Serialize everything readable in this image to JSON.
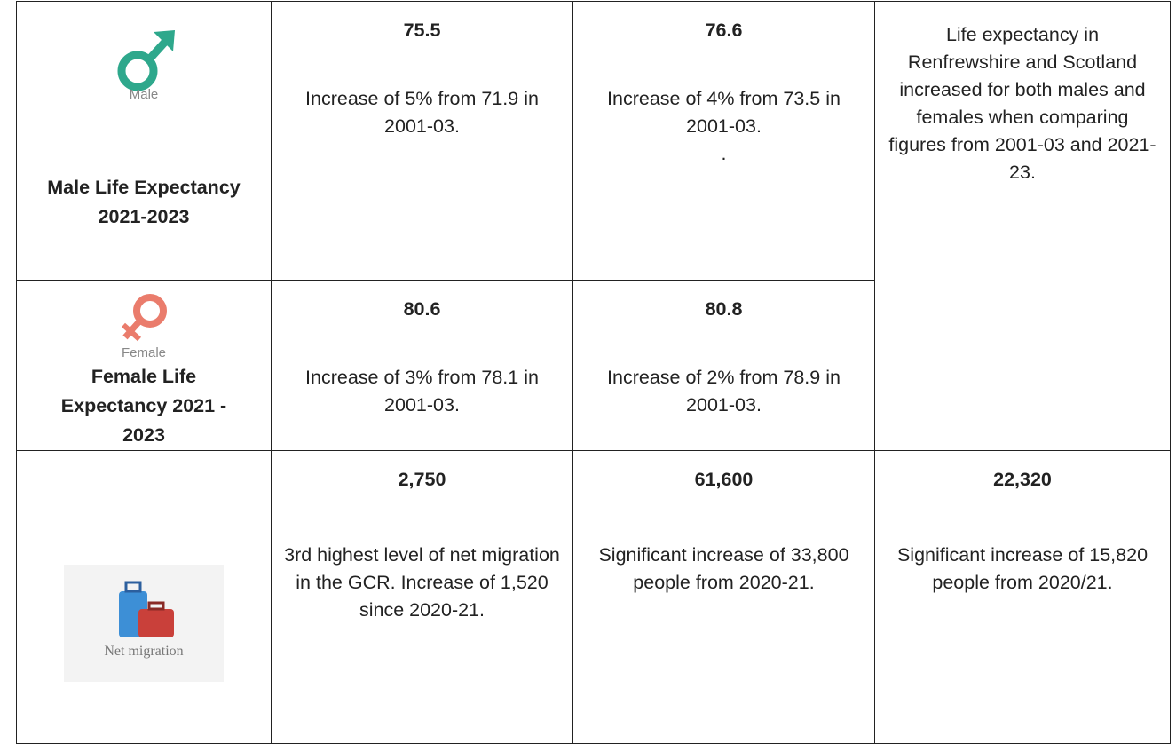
{
  "table": {
    "rows": [
      {
        "icon_label": "Male",
        "label": "Male Life Expectancy 2021-2023",
        "cells": [
          {
            "value": "75.5",
            "text": "Increase of 5% from 71.9 in 2001-03."
          },
          {
            "value": "76.6",
            "text": "Increase of 4% from 73.5 in 2001-03.",
            "note": "."
          }
        ],
        "summary": "Life expectancy in Renfrewshire and Scotland increased for both males and females when comparing figures from 2001-03 and 2021-23."
      },
      {
        "icon_label": "Female",
        "label": "Female Life Expectancy 2021 - 2023",
        "cells": [
          {
            "value": "80.6",
            "text": "Increase of 3% from 78.1 in 2001-03."
          },
          {
            "value": "80.8",
            "text": "Increase of 2% from 78.9 in 2001-03."
          }
        ]
      },
      {
        "icon_label": "Net migration",
        "cells": [
          {
            "value": "2,750",
            "text": "3rd highest level of net migration in the GCR. Increase of 1,520 since 2020-21."
          },
          {
            "value": "61,600",
            "text": "Significant increase of 33,800 people from 2020-21."
          },
          {
            "value": "22,320",
            "text": "Significant increase of 15,820 people from 2020/21."
          }
        ]
      }
    ]
  }
}
